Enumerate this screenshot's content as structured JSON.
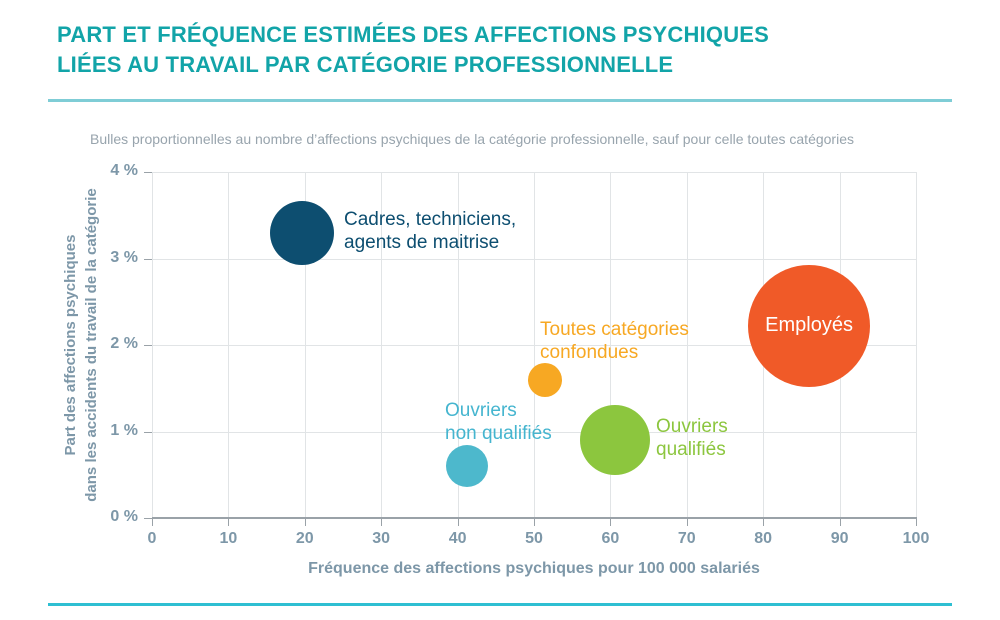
{
  "page": {
    "title_line1": "PART ET FRÉQUENCE ESTIMÉES DES AFFECTIONS PSYCHIQUES",
    "title_line2": "LIÉES AU TRAVAIL PAR CATÉGORIE PROFESSIONNELLE",
    "subtitle": "Bulles proportionnelles au nombre d’affections psychiques de la catégorie professionnelle, sauf pour celle toutes catégories",
    "colors": {
      "title": "#12a4a8",
      "rule_top": "#7fcdd6",
      "rule_bottom": "#2ebfd2",
      "subtitle_text": "#98a4ad",
      "axis_text": "#7d97a8",
      "gridline": "#e1e4e6",
      "axis_line": "#9aa2a8"
    }
  },
  "chart_data": {
    "type": "scatter",
    "subtype": "bubble",
    "title": "Part et fréquence estimées des affections psychiques liées au travail par catégorie professionnelle",
    "xlabel": "Fréquence des affections psychiques pour 100 000 salariés",
    "ylabel_line1": "Part des affections psychiques",
    "ylabel_line2": "dans les accidents du travail de la catégorie",
    "xlim": [
      0,
      100
    ],
    "ylim": [
      0,
      4
    ],
    "xticks": [
      0,
      10,
      20,
      30,
      40,
      50,
      60,
      70,
      80,
      90,
      100
    ],
    "yticks": [
      0,
      1,
      2,
      3,
      4
    ],
    "ytick_suffix": " %",
    "grid": true,
    "bubbles": [
      {
        "id": "cadres",
        "label_lines": [
          "Cadres, techniciens,",
          "agents de maitrise"
        ],
        "x": 19.6,
        "y": 3.3,
        "radius_px": 32,
        "color": "#0d4e70",
        "label_color": "#0d4e70"
      },
      {
        "id": "toutes-categories",
        "label_lines": [
          "Toutes catégories",
          "confondues"
        ],
        "x": 51.5,
        "y": 1.6,
        "radius_px": 17,
        "color": "#f7a823",
        "label_color": "#f7a823"
      },
      {
        "id": "employes",
        "label_lines": [
          "Employés"
        ],
        "x": 86,
        "y": 2.22,
        "radius_px": 61,
        "color": "#f05a28",
        "label_color": "#ffffff"
      },
      {
        "id": "ouvriers-non-qualifies",
        "label_lines": [
          "Ouvriers",
          "non qualifiés"
        ],
        "x": 41.2,
        "y": 0.6,
        "radius_px": 21,
        "color": "#4db8cc",
        "label_color": "#45b5cf"
      },
      {
        "id": "ouvriers-qualifies",
        "label_lines": [
          "Ouvriers",
          "qualifiés"
        ],
        "x": 60.6,
        "y": 0.9,
        "radius_px": 35,
        "color": "#8cc63e",
        "label_color": "#8cc63e"
      }
    ]
  }
}
